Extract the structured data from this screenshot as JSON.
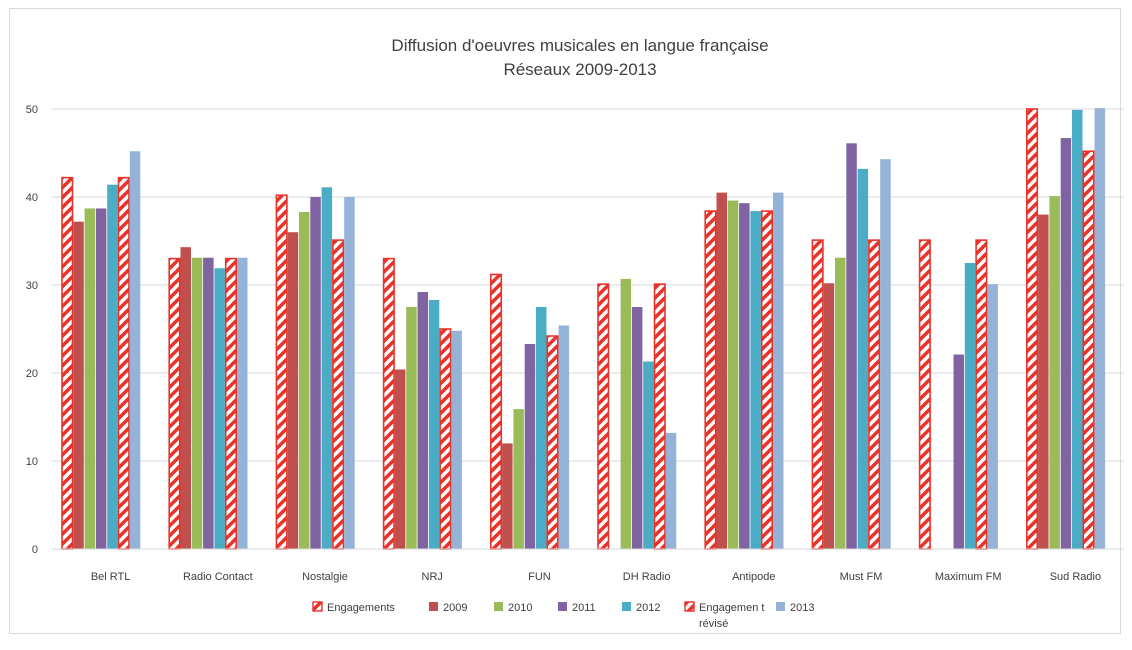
{
  "chart_data": {
    "type": "bar",
    "title_lines": [
      "Diffusion d'oeuvres musicales en langue  française",
      "Réseaux 2009-2013"
    ],
    "xlabel": "",
    "ylabel": "",
    "ylim": [
      0,
      50
    ],
    "yticks": [
      "0",
      "10",
      "20",
      "30",
      "40",
      "50"
    ],
    "grid": true,
    "legend_position": "bottom",
    "categories": [
      "Bel RTL",
      "Radio Contact",
      "Nostalgie",
      "NRJ",
      "FUN",
      "DH Radio",
      "Antipode",
      "Must FM",
      "Maximum FM",
      "Sud Radio"
    ],
    "series": [
      {
        "name": "Engagements",
        "color": "#e8332a",
        "pattern": "hatched",
        "values": [
          42.2,
          33.0,
          40.2,
          33.0,
          31.2,
          30.1,
          38.4,
          35.1,
          35.1,
          50.0
        ]
      },
      {
        "name": "2009",
        "color": "#c0504d",
        "values": [
          37.2,
          34.3,
          36.0,
          20.4,
          12.0,
          null,
          40.5,
          30.2,
          null,
          38.0
        ]
      },
      {
        "name": "2010",
        "color": "#9bbb59",
        "values": [
          38.7,
          33.1,
          38.3,
          27.5,
          15.9,
          30.7,
          39.6,
          33.1,
          null,
          40.1
        ]
      },
      {
        "name": "2011",
        "color": "#8064a2",
        "values": [
          38.7,
          33.1,
          40.0,
          29.2,
          23.3,
          27.5,
          39.3,
          46.1,
          22.1,
          46.7
        ]
      },
      {
        "name": "2012",
        "color": "#4bacc6",
        "values": [
          41.4,
          31.9,
          41.1,
          28.3,
          27.5,
          21.3,
          38.4,
          43.2,
          32.5,
          49.9
        ]
      },
      {
        "name": "Engagement révisé",
        "legend_lines": [
          "Engagemen t",
          "révisé"
        ],
        "color": "#e8332a",
        "pattern": "hatched",
        "values": [
          42.2,
          33.0,
          35.1,
          25.0,
          24.2,
          30.1,
          38.4,
          35.1,
          35.1,
          45.2
        ]
      },
      {
        "name": "2013",
        "color": "#95b3d7",
        "values": [
          45.2,
          33.1,
          40.0,
          24.8,
          25.4,
          13.2,
          40.5,
          44.3,
          30.1,
          50.1
        ]
      }
    ]
  }
}
